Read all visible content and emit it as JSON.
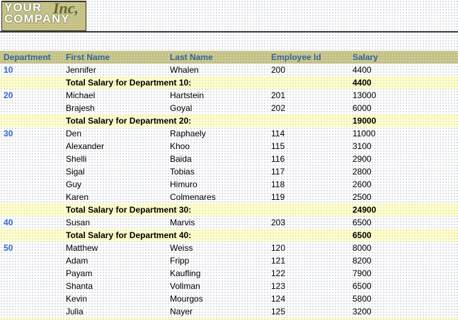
{
  "logo": {
    "line1": "YOUR",
    "line2": "COMPANY",
    "suffix": "Inc,"
  },
  "colors": {
    "band_khaki": "#c2c083",
    "header_text": "#336699",
    "department_text": "#3366cc",
    "total_row_bg": "#ffffcc",
    "body_text": "#000000",
    "logo_suffix_text": "#666633"
  },
  "table": {
    "columns": [
      "Department",
      "First Name",
      "Last Name",
      "Employee Id",
      "Salary"
    ],
    "rows": [
      {
        "type": "data",
        "dept": "10",
        "first": "Jennifer",
        "last": "Whalen",
        "id": "200",
        "salary": "4400"
      },
      {
        "type": "total",
        "label": "Total Salary for Department 10:",
        "value": "4400"
      },
      {
        "type": "data",
        "dept": "20",
        "first": "Michael",
        "last": "Hartstein",
        "id": "201",
        "salary": "13000"
      },
      {
        "type": "data",
        "first": "Brajesh",
        "last": "Goyal",
        "id": "202",
        "salary": "6000"
      },
      {
        "type": "total",
        "label": "Total Salary for Department 20:",
        "value": "19000"
      },
      {
        "type": "data",
        "dept": "30",
        "first": "Den",
        "last": "Raphaely",
        "id": "114",
        "salary": "11000"
      },
      {
        "type": "data",
        "first": "Alexander",
        "last": "Khoo",
        "id": "115",
        "salary": "3100"
      },
      {
        "type": "data",
        "first": "Shelli",
        "last": "Baida",
        "id": "116",
        "salary": "2900"
      },
      {
        "type": "data",
        "first": "Sigal",
        "last": "Tobias",
        "id": "117",
        "salary": "2800"
      },
      {
        "type": "data",
        "first": "Guy",
        "last": "Himuro",
        "id": "118",
        "salary": "2600"
      },
      {
        "type": "data",
        "first": "Karen",
        "last": "Colmenares",
        "id": "119",
        "salary": "2500"
      },
      {
        "type": "total",
        "label": "Total Salary for Department 30:",
        "value": "24900"
      },
      {
        "type": "data",
        "dept": "40",
        "first": "Susan",
        "last": "Marvis",
        "id": "203",
        "salary": "6500"
      },
      {
        "type": "total",
        "label": "Total Salary for Department 40:",
        "value": "6500"
      },
      {
        "type": "data",
        "dept": "50",
        "first": "Matthew",
        "last": "Weiss",
        "id": "120",
        "salary": "8000"
      },
      {
        "type": "data",
        "first": "Adam",
        "last": "Fripp",
        "id": "121",
        "salary": "8200"
      },
      {
        "type": "data",
        "first": "Payam",
        "last": "Kaufling",
        "id": "122",
        "salary": "7900"
      },
      {
        "type": "data",
        "first": "Shanta",
        "last": "Vollman",
        "id": "123",
        "salary": "6500"
      },
      {
        "type": "data",
        "first": "Kevin",
        "last": "Mourgos",
        "id": "124",
        "salary": "5800"
      },
      {
        "type": "data",
        "first": "Julia",
        "last": "Nayer",
        "id": "125",
        "salary": "3200"
      },
      {
        "type": "total",
        "label": "",
        "value": ""
      }
    ]
  }
}
